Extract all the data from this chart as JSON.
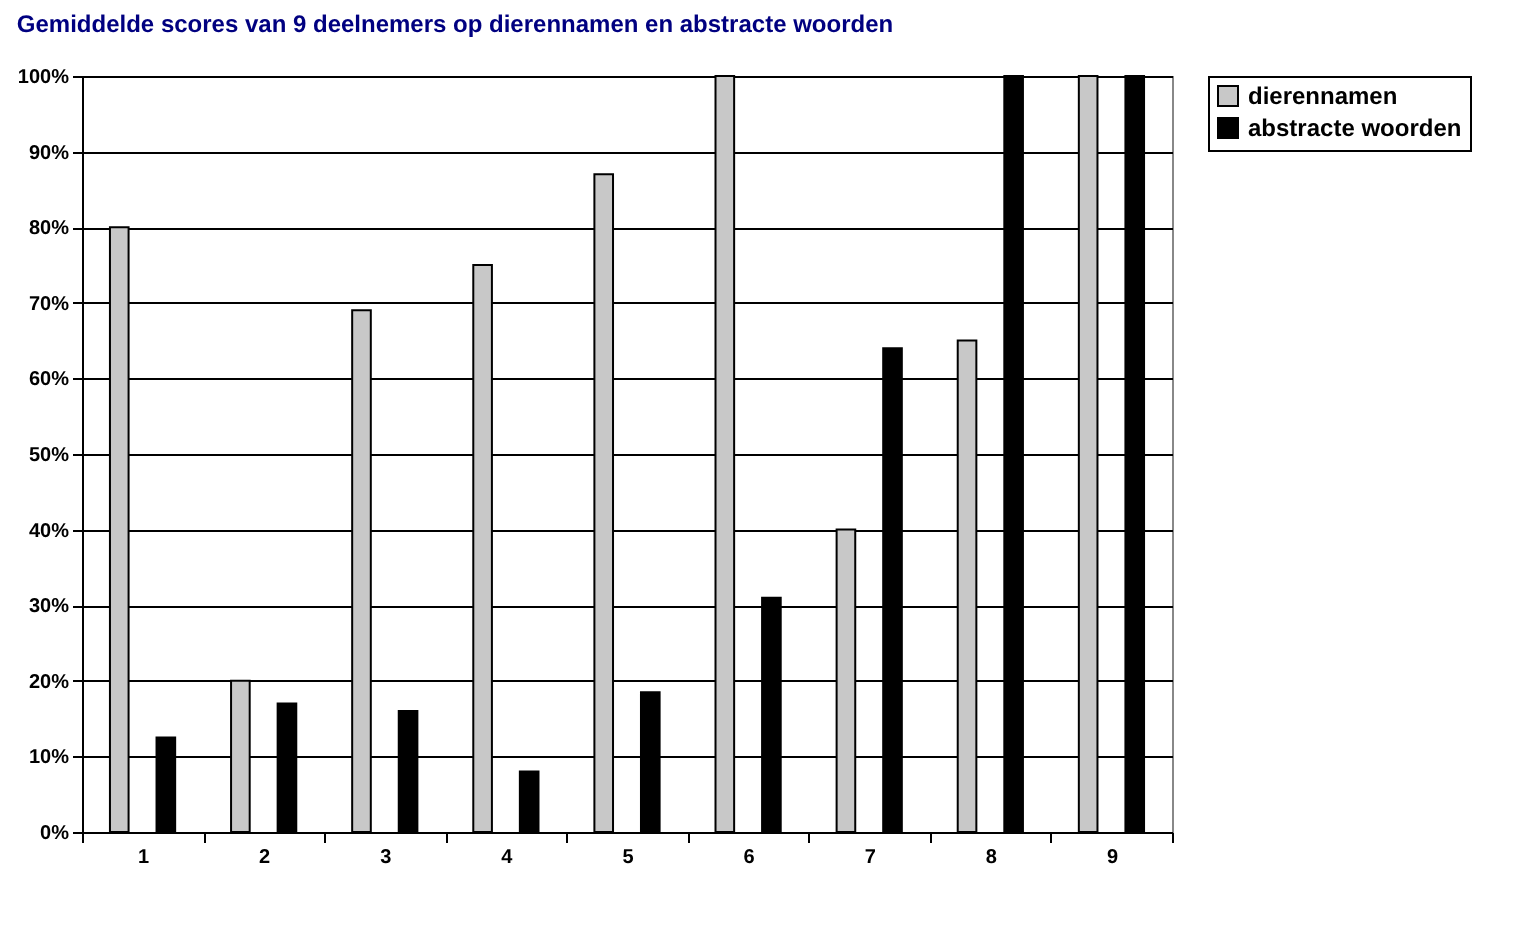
{
  "chart_data": {
    "type": "bar",
    "title": "Gemiddelde scores van  9 deelnemers op dierennamen en abstracte woorden",
    "categories": [
      "1",
      "2",
      "3",
      "4",
      "5",
      "6",
      "7",
      "8",
      "9"
    ],
    "series": [
      {
        "name": "dierennamen",
        "color": "#c8c8c8",
        "values": [
          80,
          20,
          69,
          75,
          87,
          100,
          40,
          65,
          100
        ]
      },
      {
        "name": "abstracte woorden",
        "color": "#000000",
        "values": [
          12.5,
          17,
          16,
          8,
          18.5,
          31,
          64,
          100,
          100
        ]
      }
    ],
    "ylim": [
      0,
      100
    ],
    "yticks": [
      {
        "value": 0,
        "label": "0%"
      },
      {
        "value": 10,
        "label": "10%"
      },
      {
        "value": 20,
        "label": "20%"
      },
      {
        "value": 30,
        "label": "30%"
      },
      {
        "value": 40,
        "label": "40%"
      },
      {
        "value": 50,
        "label": "50%"
      },
      {
        "value": 60,
        "label": "60%"
      },
      {
        "value": 70,
        "label": "70%"
      },
      {
        "value": 80,
        "label": "80%"
      },
      {
        "value": 90,
        "label": "90%"
      },
      {
        "value": 100,
        "label": "100%"
      }
    ],
    "grid": "y",
    "legend": "right"
  }
}
